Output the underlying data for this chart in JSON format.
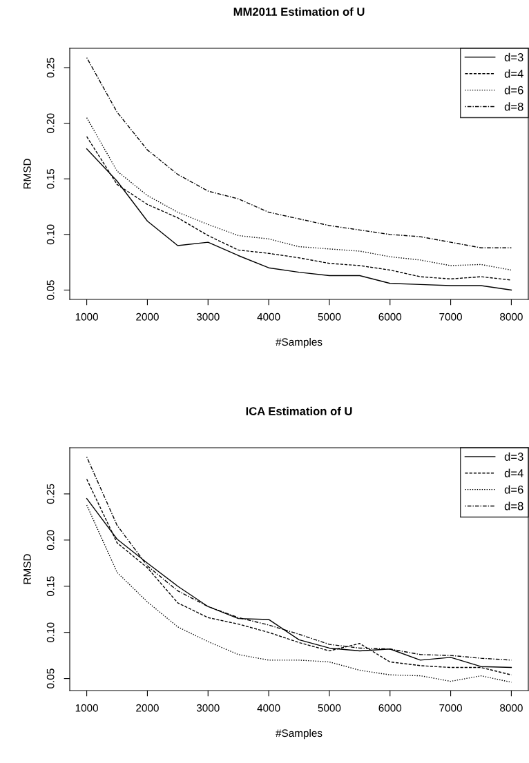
{
  "chart_data": [
    {
      "type": "line",
      "title": "MM2011 Estimation of U",
      "xlabel": "#Samples",
      "ylabel": "RMSD",
      "x": [
        1000,
        1500,
        2000,
        2500,
        3000,
        3500,
        4000,
        4500,
        5000,
        5500,
        6000,
        6500,
        7000,
        7500,
        8000
      ],
      "xlim": [
        720,
        8280
      ],
      "ylim": [
        0.0416,
        0.2674
      ],
      "xticks": [
        1000,
        2000,
        3000,
        4000,
        5000,
        6000,
        7000,
        8000
      ],
      "yticks": [
        {
          "value": 0.05,
          "label": "0.05"
        },
        {
          "value": 0.1,
          "label": "0.10"
        },
        {
          "value": 0.15,
          "label": "0.15"
        },
        {
          "value": 0.2,
          "label": "0.20"
        },
        {
          "value": 0.25,
          "label": "0.25"
        }
      ],
      "legend": "top right",
      "grid": false,
      "series": [
        {
          "name": "d=3",
          "color": "#000000",
          "line_style": "solid",
          "values": [
            0.177,
            0.148,
            0.112,
            0.09,
            0.093,
            0.081,
            0.07,
            0.066,
            0.063,
            0.063,
            0.056,
            0.055,
            0.054,
            0.054,
            0.05
          ]
        },
        {
          "name": "d=4",
          "color": "#000000",
          "line_style": "dashed",
          "values": [
            0.188,
            0.145,
            0.127,
            0.115,
            0.099,
            0.086,
            0.083,
            0.079,
            0.074,
            0.072,
            0.068,
            0.062,
            0.06,
            0.062,
            0.059
          ]
        },
        {
          "name": "d=6",
          "color": "#000000",
          "line_style": "dotted",
          "values": [
            0.205,
            0.157,
            0.135,
            0.12,
            0.109,
            0.099,
            0.096,
            0.089,
            0.087,
            0.085,
            0.08,
            0.077,
            0.072,
            0.073,
            0.068
          ]
        },
        {
          "name": "d=8",
          "color": "#000000",
          "line_style": "dashdot",
          "values": [
            0.259,
            0.21,
            0.176,
            0.154,
            0.139,
            0.132,
            0.12,
            0.114,
            0.108,
            0.104,
            0.1,
            0.098,
            0.093,
            0.088,
            0.088
          ]
        }
      ]
    },
    {
      "type": "line",
      "title": "ICA Estimation of U",
      "xlabel": "#Samples",
      "ylabel": "RMSD",
      "x": [
        1000,
        1500,
        2000,
        2500,
        3000,
        3500,
        4000,
        4500,
        5000,
        5500,
        6000,
        6500,
        7000,
        7500,
        8000
      ],
      "xlim": [
        720,
        8280
      ],
      "ylim": [
        0.037,
        0.3
      ],
      "xticks": [
        1000,
        2000,
        3000,
        4000,
        5000,
        6000,
        7000,
        8000
      ],
      "yticks": [
        {
          "value": 0.05,
          "label": "0.05"
        },
        {
          "value": 0.1,
          "label": "0.10"
        },
        {
          "value": 0.15,
          "label": "0.15"
        },
        {
          "value": 0.2,
          "label": "0.20"
        },
        {
          "value": 0.25,
          "label": "0.25"
        }
      ],
      "legend": "top right",
      "grid": false,
      "series": [
        {
          "name": "d=3",
          "color": "#000000",
          "line_style": "solid",
          "values": [
            0.245,
            0.201,
            0.175,
            0.15,
            0.128,
            0.115,
            0.114,
            0.092,
            0.083,
            0.08,
            0.082,
            0.07,
            0.073,
            0.063,
            0.062
          ]
        },
        {
          "name": "d=4",
          "color": "#000000",
          "line_style": "dashed",
          "values": [
            0.266,
            0.197,
            0.17,
            0.132,
            0.116,
            0.109,
            0.1,
            0.089,
            0.08,
            0.088,
            0.068,
            0.064,
            0.062,
            0.062,
            0.054
          ]
        },
        {
          "name": "d=6",
          "color": "#000000",
          "line_style": "dotted",
          "values": [
            0.238,
            0.165,
            0.133,
            0.106,
            0.09,
            0.076,
            0.07,
            0.07,
            0.068,
            0.059,
            0.054,
            0.053,
            0.047,
            0.053,
            0.046
          ]
        },
        {
          "name": "d=8",
          "color": "#000000",
          "line_style": "dashdot",
          "values": [
            0.29,
            0.216,
            0.172,
            0.145,
            0.128,
            0.116,
            0.108,
            0.098,
            0.087,
            0.083,
            0.082,
            0.076,
            0.075,
            0.072,
            0.07
          ]
        }
      ]
    }
  ]
}
